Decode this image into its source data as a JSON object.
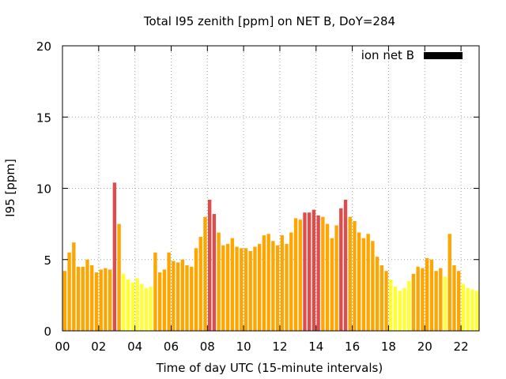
{
  "chart_data": {
    "type": "bar",
    "title": "Total I95 zenith [ppm] on NET B, DoY=284",
    "xlabel": "Time of day UTC (15-minute intervals)",
    "ylabel": "I95 [ppm]",
    "ylim": [
      0,
      20
    ],
    "yticks": [
      "0",
      "5",
      "10",
      "15",
      "20"
    ],
    "xlim": [
      0,
      22.75
    ],
    "xticks": [
      "00",
      "02",
      "04",
      "06",
      "08",
      "10",
      "12",
      "14",
      "16",
      "18",
      "20",
      "22"
    ],
    "grid": true,
    "legend": {
      "label": "ion net B",
      "position": "top-right",
      "color": "#000000"
    },
    "colors": {
      "yellow": "#ffff33",
      "orange": "#ffa500",
      "red": "#e34a4a"
    },
    "x": [
      0,
      0.25,
      0.5,
      0.75,
      1,
      1.25,
      1.5,
      1.75,
      2,
      2.25,
      2.5,
      2.75,
      3,
      3.25,
      3.5,
      3.75,
      4,
      4.25,
      4.5,
      4.75,
      5,
      5.25,
      5.5,
      5.75,
      6,
      6.25,
      6.5,
      6.75,
      7,
      7.25,
      7.5,
      7.75,
      8,
      8.25,
      8.5,
      8.75,
      9,
      9.25,
      9.5,
      9.75,
      10,
      10.25,
      10.5,
      10.75,
      11,
      11.25,
      11.5,
      11.75,
      12,
      12.25,
      12.5,
      12.75,
      13,
      13.25,
      13.5,
      13.75,
      14,
      14.25,
      14.5,
      14.75,
      15,
      15.25,
      15.5,
      15.75,
      16,
      16.25,
      16.5,
      16.75,
      17,
      17.25,
      17.5,
      17.75,
      18,
      18.25,
      18.5,
      18.75,
      19,
      19.25,
      19.5,
      19.75,
      20,
      20.25,
      20.5,
      20.75,
      21,
      21.25,
      21.5,
      21.75,
      22,
      22.25,
      22.5,
      22.75
    ],
    "values": [
      4.2,
      5.5,
      6.2,
      4.5,
      4.5,
      5.0,
      4.6,
      4.1,
      4.3,
      4.4,
      4.3,
      10.4,
      7.5,
      4.0,
      3.6,
      3.4,
      3.7,
      3.3,
      3.0,
      3.1,
      5.5,
      4.1,
      4.3,
      5.5,
      4.9,
      4.8,
      5.0,
      4.6,
      4.5,
      5.8,
      6.6,
      8.0,
      9.2,
      8.2,
      6.9,
      6.0,
      6.1,
      6.5,
      5.9,
      5.8,
      5.8,
      5.6,
      5.9,
      6.1,
      6.7,
      6.8,
      6.3,
      6.0,
      6.7,
      6.1,
      6.9,
      7.9,
      7.8,
      8.3,
      8.3,
      8.5,
      8.1,
      8.0,
      7.5,
      6.5,
      7.4,
      8.6,
      9.2,
      8.0,
      7.7,
      6.9,
      6.5,
      6.8,
      6.3,
      5.2,
      4.6,
      4.2,
      3.6,
      3.1,
      2.8,
      3.0,
      3.5,
      4.0,
      4.5,
      4.4,
      5.1,
      5.0,
      4.2,
      4.4,
      3.8,
      6.8,
      4.6,
      4.2,
      3.3,
      3.0,
      2.9,
      2.8
    ],
    "bar_colors": [
      "orange",
      "orange",
      "orange",
      "orange",
      "orange",
      "orange",
      "orange",
      "orange",
      "orange",
      "orange",
      "orange",
      "red",
      "orange",
      "yellow",
      "yellow",
      "yellow",
      "yellow",
      "yellow",
      "yellow",
      "yellow",
      "orange",
      "orange",
      "orange",
      "orange",
      "orange",
      "orange",
      "orange",
      "orange",
      "orange",
      "orange",
      "orange",
      "orange",
      "red",
      "red",
      "orange",
      "orange",
      "orange",
      "orange",
      "orange",
      "orange",
      "orange",
      "orange",
      "orange",
      "orange",
      "orange",
      "orange",
      "orange",
      "orange",
      "orange",
      "orange",
      "orange",
      "orange",
      "orange",
      "red",
      "red",
      "red",
      "red",
      "orange",
      "orange",
      "orange",
      "orange",
      "red",
      "red",
      "orange",
      "orange",
      "orange",
      "orange",
      "orange",
      "orange",
      "orange",
      "orange",
      "orange",
      "yellow",
      "yellow",
      "yellow",
      "yellow",
      "yellow",
      "orange",
      "orange",
      "orange",
      "orange",
      "orange",
      "orange",
      "orange",
      "yellow",
      "orange",
      "orange",
      "orange",
      "yellow",
      "yellow",
      "yellow",
      "yellow"
    ]
  }
}
